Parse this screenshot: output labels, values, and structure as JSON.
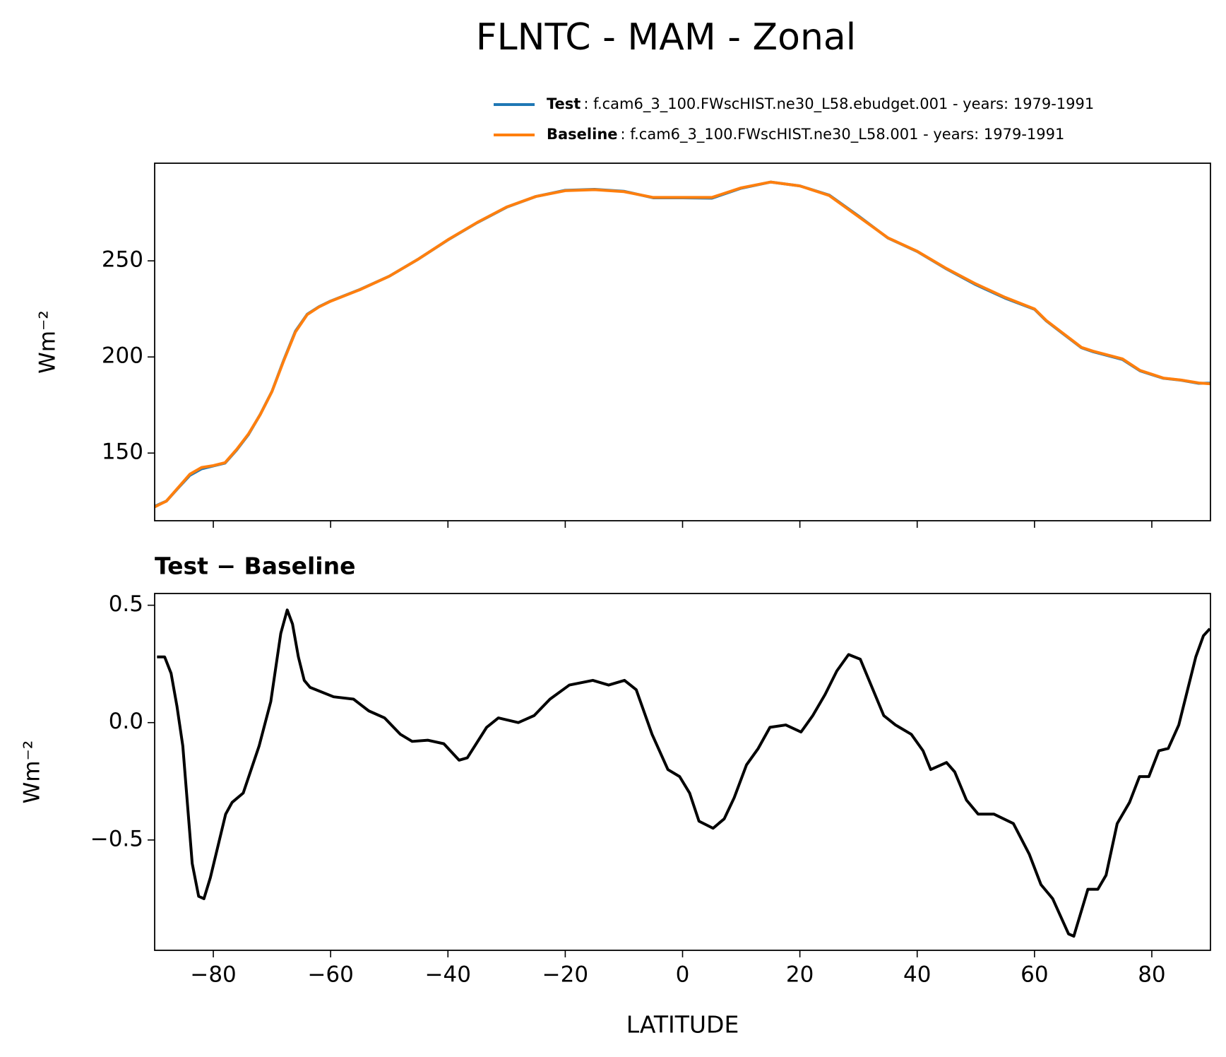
{
  "chart_data": [
    {
      "type": "line",
      "title": "FLNTC - MAM - Zonal",
      "ylabel": "Wm⁻²",
      "legend": "top-right",
      "sharex": true,
      "x": [
        -90,
        -88,
        -86,
        -84,
        -82,
        -80,
        -78,
        -76,
        -74,
        -72,
        -70,
        -68,
        -66,
        -64,
        -62,
        -60,
        -55,
        -50,
        -45,
        -40,
        -35,
        -30,
        -25,
        -20,
        -15,
        -10,
        -5,
        0,
        5,
        10,
        15,
        20,
        25,
        30,
        35,
        40,
        45,
        50,
        55,
        60,
        62,
        65,
        68,
        70,
        75,
        78,
        80,
        82,
        85,
        88,
        90
      ],
      "series": [
        {
          "name": "Test",
          "description": ": f.cam6_3_100.FWscHIST.ne30_L58.ebudget.001 - years: 1979-1991",
          "color": "#1f77b4",
          "values": [
            122.3,
            125,
            131.8,
            138.4,
            141.8,
            143.3,
            144.8,
            151.7,
            159.7,
            170.1,
            182.1,
            198.3,
            213.4,
            222.2,
            226.1,
            229.1,
            235.1,
            242,
            251,
            260.9,
            269.9,
            277.9,
            283.5,
            286.7,
            287.2,
            286.2,
            282.8,
            282.8,
            282.6,
            287.8,
            291,
            289,
            284.2,
            273.3,
            261.9,
            254.9,
            245.8,
            237.6,
            230.6,
            224.8,
            218.8,
            211.8,
            204.8,
            202.7,
            198.7,
            192.8,
            190.8,
            188.9,
            187.9,
            186.3,
            186.4
          ]
        },
        {
          "name": "Baseline",
          "description": ": f.cam6_3_100.FWscHIST.ne30_L58.001 - years: 1979-1991",
          "color": "#ff7f0e",
          "values": [
            122,
            125,
            132,
            139,
            142.5,
            143.5,
            145,
            152,
            160,
            170,
            182,
            198,
            213,
            222,
            226,
            229,
            235,
            242,
            251,
            261,
            270,
            278,
            283.5,
            286.5,
            287,
            286,
            283,
            283,
            283,
            288,
            291,
            289,
            284,
            273,
            262,
            255,
            246,
            238,
            231,
            225,
            219,
            212,
            205,
            203,
            199,
            193,
            191,
            189,
            188,
            186.5,
            186
          ]
        }
      ],
      "ylim": [
        114.8,
        300.8
      ],
      "yticks": [
        150,
        200,
        250
      ],
      "xlim": [
        -90,
        90
      ]
    },
    {
      "type": "line",
      "subtitle": "Test − Baseline",
      "xlabel": "LATITUDE",
      "ylabel": "Wm⁻²",
      "x": [
        -89.6,
        -88.3,
        -87.2,
        -86.2,
        -85.2,
        -83.6,
        -82.5,
        -81.6,
        -80.5,
        -77.9,
        -76.8,
        -74.9,
        -72.2,
        -70.2,
        -68.5,
        -67.4,
        -66.5,
        -65.5,
        -64.5,
        -63.5,
        -59.5,
        -56.1,
        -53.5,
        -50.8,
        -48.1,
        -46.1,
        -43.4,
        -40.7,
        -38.1,
        -36.7,
        -33.4,
        -31.4,
        -28,
        -25.3,
        -22.6,
        -19.3,
        -15.3,
        -12.6,
        -9.9,
        -7.9,
        -5.2,
        -2.5,
        -0.5,
        1.2,
        2.8,
        5.2,
        7.1,
        8.8,
        10.9,
        12.9,
        14.9,
        17.6,
        20.2,
        22.2,
        24.3,
        26.3,
        28.3,
        30.3,
        32.3,
        34.3,
        36.3,
        39,
        41,
        42.3,
        45,
        46.4,
        48.4,
        50.4,
        53.1,
        56.4,
        59.1,
        61.1,
        63.1,
        65.8,
        66.7,
        69.1,
        70.8,
        72.2,
        74.1,
        76.2,
        77.9,
        79.5,
        81.2,
        82.8,
        84.6,
        85.9,
        87.5,
        88.8,
        89.9
      ],
      "series": [
        {
          "name": "Test − Baseline",
          "color": "#000000",
          "values": [
            0.28,
            0.28,
            0.21,
            0.07,
            -0.1,
            -0.6,
            -0.74,
            -0.75,
            -0.66,
            -0.39,
            -0.34,
            -0.3,
            -0.1,
            0.09,
            0.38,
            0.48,
            0.42,
            0.28,
            0.18,
            0.15,
            0.11,
            0.1,
            0.05,
            0.02,
            -0.05,
            -0.08,
            -0.075,
            -0.09,
            -0.16,
            -0.15,
            -0.02,
            0.02,
            0.0,
            0.03,
            0.1,
            0.16,
            0.18,
            0.16,
            0.18,
            0.14,
            -0.05,
            -0.2,
            -0.23,
            -0.3,
            -0.42,
            -0.45,
            -0.41,
            -0.32,
            -0.18,
            -0.11,
            -0.02,
            -0.01,
            -0.04,
            0.03,
            0.12,
            0.22,
            0.29,
            0.27,
            0.15,
            0.03,
            -0.01,
            -0.05,
            -0.12,
            -0.2,
            -0.17,
            -0.21,
            -0.33,
            -0.39,
            -0.39,
            -0.43,
            -0.56,
            -0.69,
            -0.75,
            -0.9,
            -0.91,
            -0.71,
            -0.71,
            -0.65,
            -0.43,
            -0.34,
            -0.23,
            -0.23,
            -0.12,
            -0.11,
            -0.01,
            0.12,
            0.28,
            0.37,
            0.4
          ]
        }
      ],
      "ylim": [
        -0.97,
        0.55
      ],
      "yticks": [
        {
          "value": -0.5,
          "label": "−0.5"
        },
        {
          "value": 0,
          "label": "0.0"
        },
        0.5
      ],
      "xlim": [
        -90,
        90
      ],
      "xticks": [
        {
          "value": -80,
          "label": "−80"
        },
        {
          "value": -60,
          "label": "−60"
        },
        {
          "value": -40,
          "label": "−40"
        },
        {
          "value": -20,
          "label": "−20"
        },
        0,
        20,
        40,
        60,
        80
      ]
    }
  ]
}
